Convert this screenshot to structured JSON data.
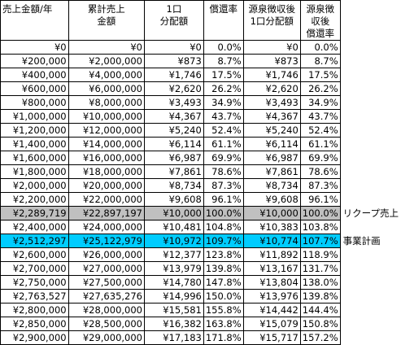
{
  "table": {
    "header": [
      "売上金額/年",
      "累計売上\n金額",
      "1口\n分配額",
      "償還率",
      "源泉徴収後\n1口分配額",
      "源泉徴収後\n償還率"
    ],
    "rows": [
      {
        "cells": [
          "¥0",
          "¥0",
          "¥0",
          "0.0%",
          "¥0",
          "0.0%"
        ]
      },
      {
        "cells": [
          "¥200,000",
          "¥2,000,000",
          "¥873",
          "8.7%",
          "¥873",
          "8.7%"
        ]
      },
      {
        "cells": [
          "¥400,000",
          "¥4,000,000",
          "¥1,746",
          "17.5%",
          "¥1,746",
          "17.5%"
        ]
      },
      {
        "cells": [
          "¥600,000",
          "¥6,000,000",
          "¥2,620",
          "26.2%",
          "¥2,620",
          "26.2%"
        ]
      },
      {
        "cells": [
          "¥800,000",
          "¥8,000,000",
          "¥3,493",
          "34.9%",
          "¥3,493",
          "34.9%"
        ]
      },
      {
        "cells": [
          "¥1,000,000",
          "¥10,000,000",
          "¥4,367",
          "43.7%",
          "¥4,367",
          "43.7%"
        ]
      },
      {
        "cells": [
          "¥1,200,000",
          "¥12,000,000",
          "¥5,240",
          "52.4%",
          "¥5,240",
          "52.4%"
        ]
      },
      {
        "cells": [
          "¥1,400,000",
          "¥14,000,000",
          "¥6,114",
          "61.1%",
          "¥6,114",
          "61.1%"
        ]
      },
      {
        "cells": [
          "¥1,600,000",
          "¥16,000,000",
          "¥6,987",
          "69.9%",
          "¥6,987",
          "69.9%"
        ]
      },
      {
        "cells": [
          "¥1,800,000",
          "¥18,000,000",
          "¥7,861",
          "78.6%",
          "¥7,861",
          "78.6%"
        ]
      },
      {
        "cells": [
          "¥2,000,000",
          "¥20,000,000",
          "¥8,734",
          "87.3%",
          "¥8,734",
          "87.3%"
        ]
      },
      {
        "cells": [
          "¥2,200,000",
          "¥22,000,000",
          "¥9,608",
          "96.1%",
          "¥9,608",
          "96.1%"
        ]
      },
      {
        "cells": [
          "¥2,289,719",
          "¥22,897,197",
          "¥10,000",
          "100.0%",
          "¥10,000",
          "100.0%"
        ],
        "fill": "#c0c0c0",
        "note": "リクープ売上"
      },
      {
        "cells": [
          "¥2,400,000",
          "¥24,000,000",
          "¥10,481",
          "104.8%",
          "¥10,383",
          "103.8%"
        ]
      },
      {
        "cells": [
          "¥2,512,297",
          "¥25,122,979",
          "¥10,972",
          "109.7%",
          "¥10,774",
          "107.7%"
        ],
        "fill": "#00ccff",
        "note": "事業計画"
      },
      {
        "cells": [
          "¥2,600,000",
          "¥26,000,000",
          "¥12,377",
          "123.8%",
          "¥11,892",
          "118.9%"
        ]
      },
      {
        "cells": [
          "¥2,700,000",
          "¥27,000,000",
          "¥13,979",
          "139.8%",
          "¥13,167",
          "131.7%"
        ]
      },
      {
        "cells": [
          "¥2,750,000",
          "¥27,500,000",
          "¥14,780",
          "147.8%",
          "¥13,804",
          "138.0%"
        ]
      },
      {
        "cells": [
          "¥2,763,527",
          "¥27,635,276",
          "¥14,996",
          "150.0%",
          "¥13,976",
          "139.8%"
        ]
      },
      {
        "cells": [
          "¥2,800,000",
          "¥28,000,000",
          "¥15,581",
          "155.8%",
          "¥14,442",
          "144.4%"
        ]
      },
      {
        "cells": [
          "¥2,850,000",
          "¥28,500,000",
          "¥16,382",
          "163.8%",
          "¥15,079",
          "150.8%"
        ]
      },
      {
        "cells": [
          "¥2,900,000",
          "¥29,000,000",
          "¥17,183",
          "171.8%",
          "¥15,717",
          "157.2%"
        ]
      }
    ]
  }
}
